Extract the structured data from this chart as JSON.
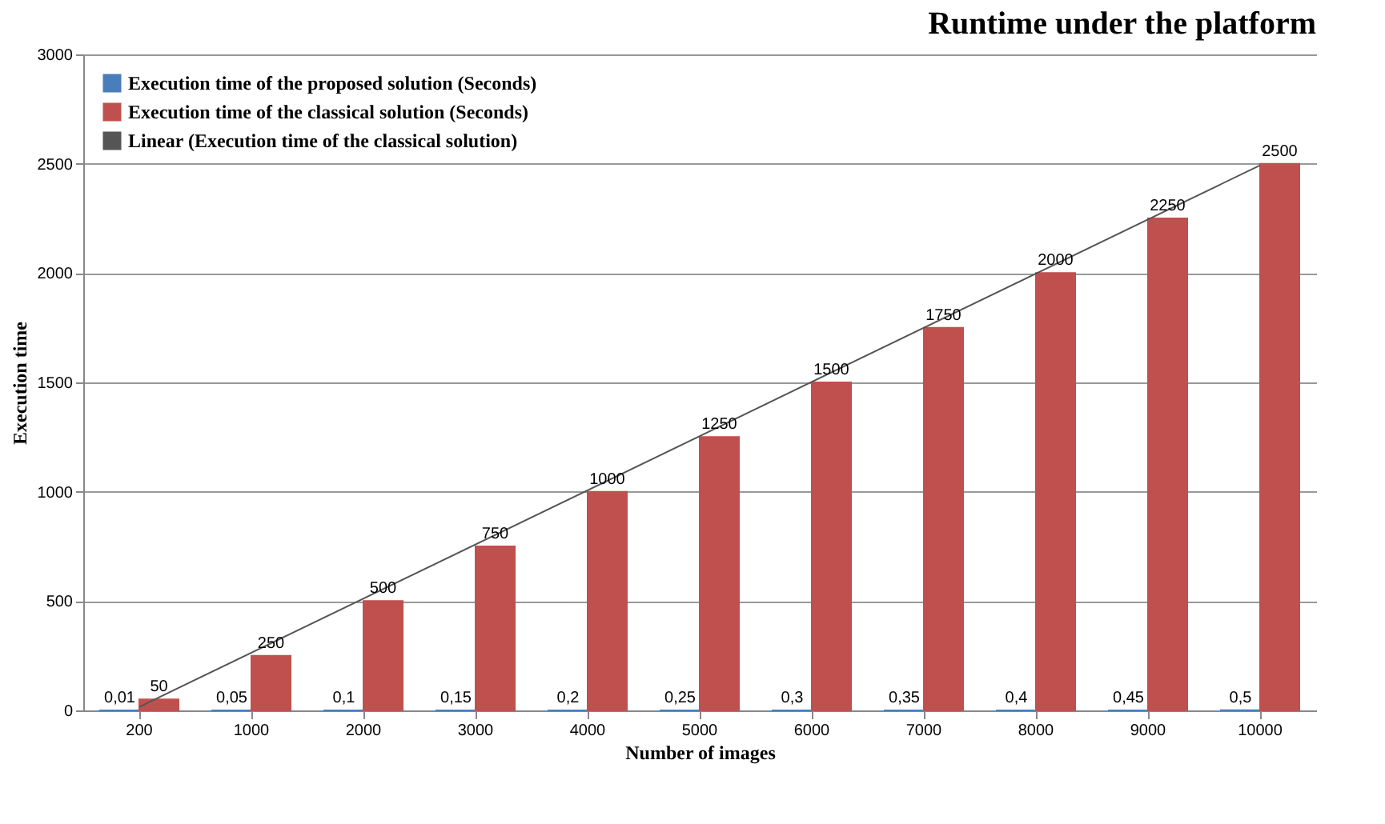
{
  "chart_data": {
    "type": "bar",
    "title": "Runtime under the platform",
    "xlabel": "Number of images",
    "ylabel": "Execution time",
    "categories": [
      "200",
      "1000",
      "2000",
      "3000",
      "4000",
      "5000",
      "6000",
      "7000",
      "8000",
      "9000",
      "10000"
    ],
    "series": [
      {
        "name": "Execution time of the proposed solution (Seconds)",
        "color": "#4a7ebb",
        "values": [
          0.01,
          0.05,
          0.1,
          0.15,
          0.2,
          0.25,
          0.3,
          0.35,
          0.4,
          0.45,
          0.5
        ],
        "value_labels": [
          "0,01",
          "0,05",
          "0,1",
          "0,15",
          "0,2",
          "0,25",
          "0,3",
          "0,35",
          "0,4",
          "0,45",
          "0,5"
        ]
      },
      {
        "name": "Execution time of the classical solution (Seconds)",
        "color": "#c0504d",
        "values": [
          50,
          250,
          500,
          750,
          1000,
          1250,
          1500,
          1750,
          2000,
          2250,
          2500
        ],
        "value_labels": [
          "50",
          "250",
          "500",
          "750",
          "1000",
          "1250",
          "1500",
          "1750",
          "2000",
          "2250",
          "2500"
        ]
      },
      {
        "name": "Linear (Execution time of the classical solution)",
        "type": "line",
        "color": "#555555",
        "x": [
          "200",
          "10000"
        ],
        "values": [
          16,
          2493
        ]
      }
    ],
    "ylim": [
      0,
      3000
    ],
    "yticks": [
      0,
      500,
      1000,
      1500,
      2000,
      2500,
      3000
    ],
    "grid": "y",
    "legend": "top left"
  }
}
